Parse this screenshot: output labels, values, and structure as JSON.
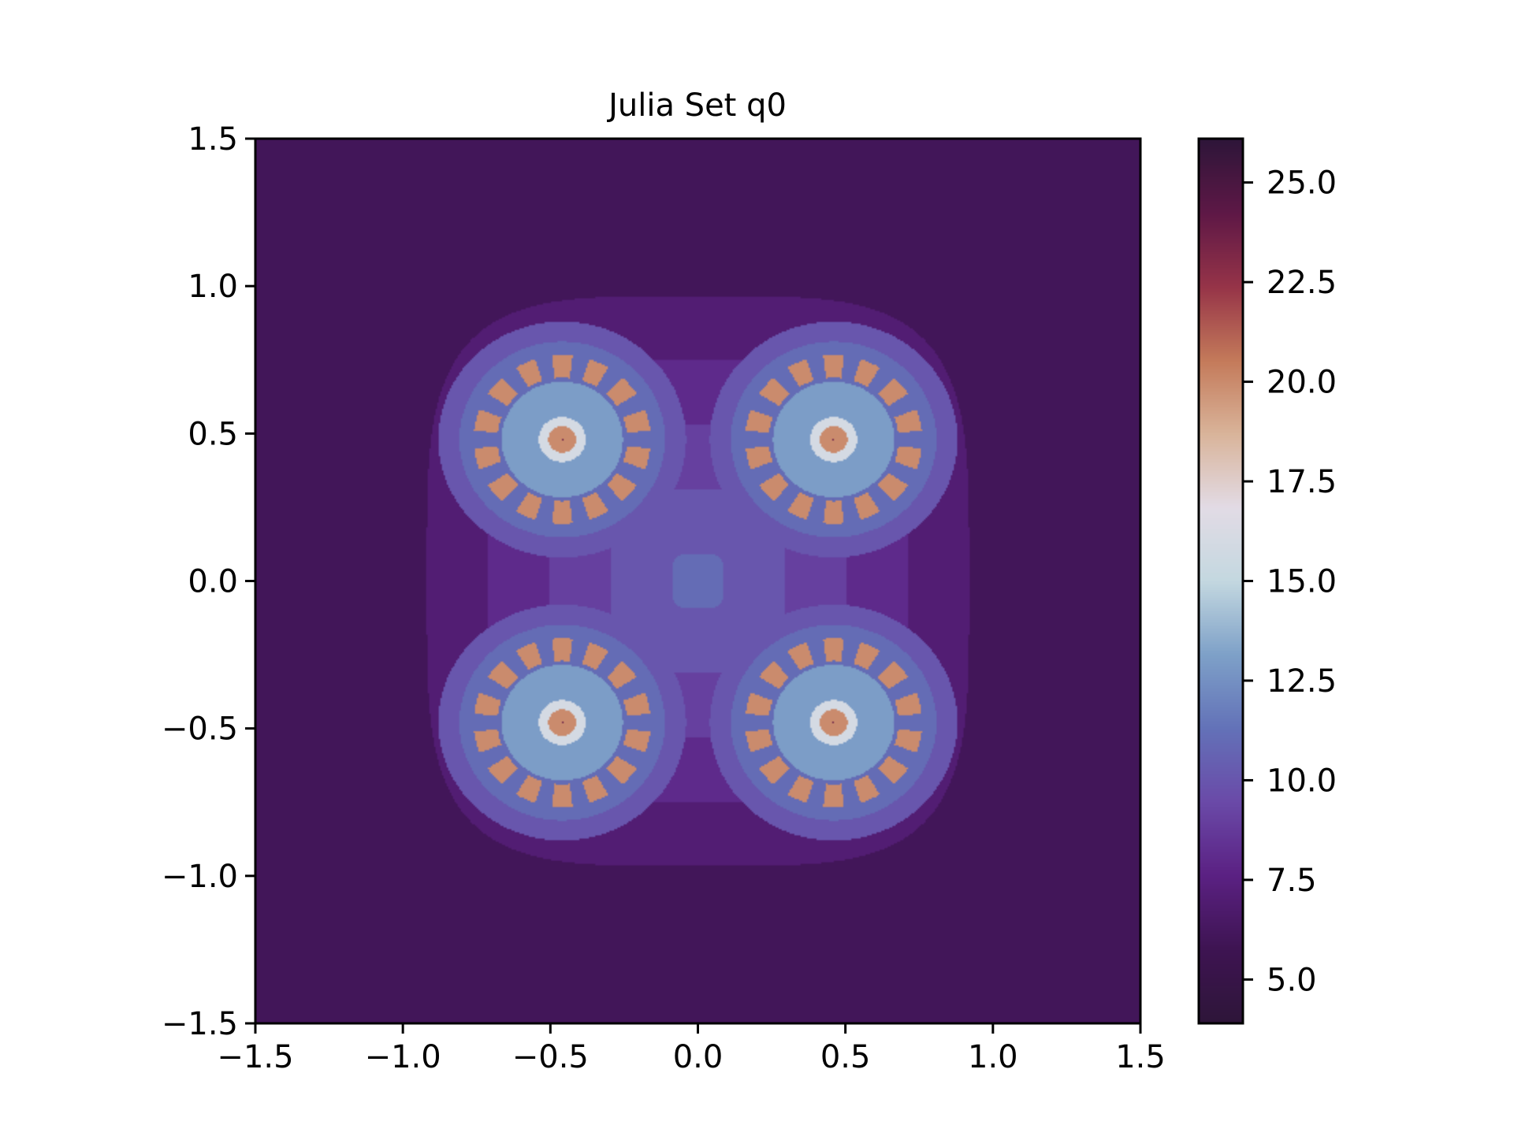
{
  "chart_data": {
    "type": "heatmap",
    "title": "Julia Set q0",
    "xlabel": "",
    "ylabel": "",
    "xlim": [
      -1.5,
      1.5
    ],
    "ylim": [
      -1.5,
      1.5
    ],
    "x_ticks": [
      -1.5,
      -1.0,
      -0.5,
      0.0,
      0.5,
      1.0,
      1.5
    ],
    "x_tick_labels": [
      "−1.5",
      "−1.0",
      "−0.5",
      "0.0",
      "0.5",
      "1.0",
      "1.5"
    ],
    "y_ticks": [
      1.5,
      1.0,
      0.5,
      0.0,
      -0.5,
      -1.0,
      -1.5
    ],
    "y_tick_labels": [
      "1.5",
      "1.0",
      "0.5",
      "0.0",
      "−0.5",
      "−1.0",
      "−1.5"
    ],
    "colorbar": {
      "range": [
        3.9,
        26.1
      ],
      "ticks": [
        25.0,
        22.5,
        20.0,
        17.5,
        15.0,
        12.5,
        10.0,
        7.5,
        5.0
      ],
      "tick_labels": [
        "25.0",
        "22.5",
        "20.0",
        "17.5",
        "15.0",
        "12.5",
        "10.0",
        "7.5",
        "5.0"
      ],
      "colormap_stops": [
        "#2e1539",
        "#3e1452",
        "#5b2183",
        "#6a4aa8",
        "#6372b8",
        "#7ea1c8",
        "#c4d8e0",
        "#e2dbe5",
        "#d9b49a",
        "#c47a5a",
        "#963448",
        "#5e1846",
        "#2e1539"
      ]
    },
    "grid": false,
    "fractal": {
      "bulb_centers": [
        [
          -0.46,
          0.48
        ],
        [
          0.46,
          0.48
        ],
        [
          -0.46,
          -0.48
        ],
        [
          0.46,
          -0.48
        ]
      ],
      "iteration_levels": [
        5,
        6,
        7,
        8,
        9,
        10,
        11,
        13,
        16,
        20,
        24
      ]
    }
  }
}
